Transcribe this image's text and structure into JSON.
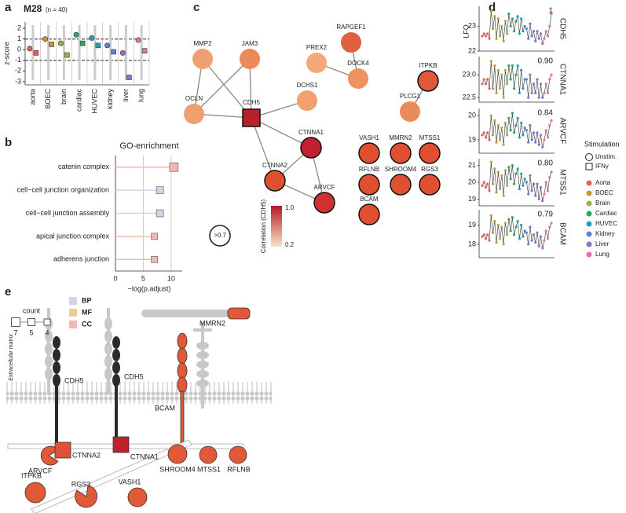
{
  "panels": [
    "a",
    "b",
    "c",
    "d",
    "e"
  ],
  "chart_data": [
    {
      "type": "scatter",
      "title": "M28",
      "subtitle": "(n = 40)",
      "ylabel": "z-score",
      "categories": [
        "aorta",
        "BOEC",
        "brain",
        "cardiac",
        "HUVEC",
        "kidney",
        "liver",
        "lung"
      ],
      "colors": [
        "#e0605a",
        "#c09a30",
        "#a0b040",
        "#2aa860",
        "#20a0c0",
        "#6080d0",
        "#9070c0",
        "#e070b0"
      ],
      "series": [
        {
          "marker": "circle",
          "values": [
            0.1,
            1.0,
            0.6,
            1.4,
            1.1,
            0.4,
            -0.3,
            0.9
          ]
        },
        {
          "marker": "square",
          "values": [
            -0.3,
            0.5,
            -0.5,
            0.6,
            0.4,
            -0.2,
            -2.6,
            -0.1
          ]
        }
      ],
      "hlines": [
        -1,
        1
      ],
      "ylim": [
        -3.3,
        2.6
      ],
      "yticks": [
        -3,
        -2,
        -1,
        0,
        1,
        2
      ]
    },
    {
      "type": "dot",
      "title": "GO-enrichment",
      "xlabel": "−log(p.adjust)",
      "categories": [
        "catenin complex",
        "cell−cell junction organization",
        "cell−cell junction assembly",
        "apical junction complex",
        "adherens junction"
      ],
      "values": [
        10.5,
        8,
        8,
        7,
        7
      ],
      "counts": [
        7,
        5,
        5,
        4,
        4
      ],
      "groups": [
        "CC",
        "BP",
        "BP",
        "CC",
        "CC"
      ],
      "legend": [
        {
          "name": "BP",
          "color": "#d8d0e8"
        },
        {
          "name": "MF",
          "color": "#f0c890"
        },
        {
          "name": "CC",
          "color": "#f0b8b0"
        }
      ],
      "count_title": "count",
      "count_legend": [
        7,
        5,
        4
      ],
      "xlim": [
        0,
        12
      ],
      "xticks": [
        0,
        5,
        10
      ],
      "grid": true
    },
    {
      "type": "line",
      "name": "CDH5",
      "ylabel": "LFQ",
      "correlation": 1,
      "values": [
        22.6,
        22.7,
        22.6,
        22.7,
        22.5,
        23.6,
        22.9,
        23.4,
        22.5,
        23.3,
        22.6,
        23.0,
        22.4,
        23.2,
        22.7,
        23.5,
        23.0,
        23.3,
        22.8,
        23.2,
        23.4,
        22.7,
        23.3,
        22.8,
        23.0,
        22.9,
        22.5,
        23.1,
        22.6,
        22.8,
        22.4,
        22.8,
        22.5,
        22.7,
        22.3,
        22.5,
        22.8,
        22.6,
        23.0,
        23.5
      ],
      "ylim": [
        22,
        23.8
      ],
      "yticks": [
        22,
        23
      ]
    },
    {
      "type": "line",
      "name": "CTNNA1",
      "correlation": 0.9,
      "correlation_label": "0.90",
      "values": [
        22.8,
        22.9,
        22.8,
        22.9,
        22.7,
        23.3,
        22.7,
        23.2,
        22.6,
        23.1,
        22.7,
        23.0,
        22.5,
        23.1,
        22.8,
        23.2,
        22.9,
        23.2,
        22.7,
        23.0,
        23.2,
        22.6,
        23.1,
        22.7,
        22.9,
        22.9,
        22.5,
        23.0,
        22.6,
        22.8,
        22.6,
        22.9,
        22.5,
        22.8,
        22.5,
        22.6,
        22.8,
        22.6,
        22.9,
        23.0
      ],
      "ylim": [
        22.4,
        23.4
      ],
      "yticks": [
        22.5,
        {
          "value": 23,
          "label": "23.0"
        }
      ]
    },
    {
      "type": "line",
      "name": "ARVCF",
      "correlation": 0.84,
      "values": [
        19.2,
        19.3,
        19.1,
        19.3,
        19.0,
        20.0,
        19.2,
        19.8,
        18.9,
        19.6,
        19.0,
        19.5,
        18.8,
        19.7,
        19.2,
        19.9,
        19.4,
        20.1,
        19.3,
        19.6,
        19.9,
        19.1,
        19.7,
        19.2,
        19.5,
        19.4,
        18.9,
        19.6,
        19.0,
        19.3,
        18.9,
        19.3,
        18.8,
        19.2,
        18.7,
        19.0,
        19.4,
        19.1,
        19.6,
        19.8
      ],
      "ylim": [
        18.45,
        20.3
      ],
      "yticks": [
        19,
        20
      ]
    },
    {
      "type": "line",
      "name": "MTSS1",
      "correlation": 0.8,
      "correlation_label": "0.80",
      "values": [
        19.8,
        20.0,
        19.7,
        19.9,
        19.5,
        21.2,
        19.9,
        20.8,
        19.4,
        20.6,
        19.6,
        20.4,
        19.2,
        20.7,
        19.8,
        20.9,
        20.2,
        21.0,
        19.9,
        20.5,
        20.8,
        19.6,
        20.5,
        19.8,
        20.2,
        20.0,
        19.3,
        20.4,
        19.5,
        19.9,
        19.2,
        19.9,
        19.0,
        19.7,
        18.9,
        19.3,
        20.0,
        19.5,
        20.3,
        20.6
      ],
      "ylim": [
        18.6,
        21.4
      ],
      "yticks": [
        19,
        20,
        21
      ]
    },
    {
      "type": "line",
      "name": "BCAM",
      "correlation": 0.79,
      "values": [
        18.4,
        18.5,
        18.3,
        18.5,
        18.2,
        19.5,
        18.6,
        19.2,
        18.1,
        19.0,
        18.3,
        18.9,
        18.0,
        19.1,
        18.5,
        19.3,
        18.7,
        19.4,
        18.5,
        18.9,
        19.2,
        18.3,
        19.0,
        18.4,
        18.7,
        18.6,
        18.0,
        18.9,
        18.2,
        18.5,
        18.1,
        18.6,
        17.9,
        18.4,
        17.8,
        18.2,
        18.7,
        18.3,
        18.9,
        19.1
      ],
      "ylim": [
        17.3,
        19.8
      ],
      "yticks": [
        18,
        19
      ]
    }
  ],
  "legend": {
    "title": "Stimulation",
    "shapes": [
      "Unstim.",
      "IFNγ"
    ],
    "tissues": [
      {
        "name": "Aorta",
        "color": "#e0605a"
      },
      {
        "name": "BOEC",
        "color": "#c09a30"
      },
      {
        "name": "Brain",
        "color": "#a0b040"
      },
      {
        "name": "Cardiac",
        "color": "#2aa860"
      },
      {
        "name": "HUVEC",
        "color": "#20a0c0"
      },
      {
        "name": "Kidney",
        "color": "#6080d0"
      },
      {
        "name": "Liver",
        "color": "#9070c0"
      },
      {
        "name": "Lung",
        "color": "#e070b0"
      }
    ]
  },
  "network": {
    "nodes": [
      {
        "label": "MMP2",
        "color": "#f0a070"
      },
      {
        "label": "JAM3",
        "color": "#ec8a5a"
      },
      {
        "label": "RAPGEF1",
        "color": "#e06040"
      },
      {
        "label": "PREX2",
        "color": "#f2a878"
      },
      {
        "label": "DOCK4",
        "color": "#ee9260"
      },
      {
        "label": "ITPKB",
        "color": "#e05838",
        "outline": true
      },
      {
        "label": "OCLN",
        "color": "#f0a070"
      },
      {
        "label": "CDH5",
        "color": "#b8202a",
        "shape": "square",
        "outline": true
      },
      {
        "label": "DCHS1",
        "color": "#f2a070"
      },
      {
        "label": "PLCG1",
        "color": "#ec8a5a"
      },
      {
        "label": "CTNNA1",
        "color": "#c02030",
        "outline": true
      },
      {
        "label": "VASH1",
        "color": "#e05030",
        "outline": true
      },
      {
        "label": "MMRN2",
        "color": "#e05030",
        "outline": true
      },
      {
        "label": "MTSS1",
        "color": "#e05030",
        "outline": true
      },
      {
        "label": "CTNNA2",
        "color": "#e05030",
        "outline": true
      },
      {
        "label": "RFLNB",
        "color": "#e05030",
        "outline": true
      },
      {
        "label": "SHROOM4",
        "color": "#e05030",
        "outline": true
      },
      {
        "label": "RGS3",
        "color": "#e05030",
        "outline": true
      },
      {
        "label": "ARVCF",
        "color": "#d03030",
        "outline": true
      },
      {
        "label": "BCAM",
        "color": "#e05030",
        "outline": true
      }
    ],
    "edges": [
      [
        0,
        6
      ],
      [
        0,
        7
      ],
      [
        1,
        6
      ],
      [
        1,
        7
      ],
      [
        6,
        7
      ],
      [
        7,
        8
      ],
      [
        7,
        10
      ],
      [
        7,
        14
      ],
      [
        2,
        4
      ],
      [
        3,
        4
      ],
      [
        5,
        9
      ],
      [
        10,
        14
      ],
      [
        10,
        18
      ],
      [
        14,
        18
      ]
    ],
    "colorbar": {
      "title": "Correlation (CDH5)",
      "max_label": "1.0",
      "min_label": "0.2",
      "threshold_label": ">0.7"
    }
  },
  "diagram": {
    "ecm": "Extracellular matrix",
    "labels": [
      "CDH5",
      "CDH5",
      "MMRN2",
      "BCAM",
      "CTNNA2",
      "CTNNA1",
      "ARVCF",
      "SHROOM4",
      "MTSS1",
      "RFLNB",
      "ITPKB",
      "RGS3",
      "VASH1"
    ]
  }
}
